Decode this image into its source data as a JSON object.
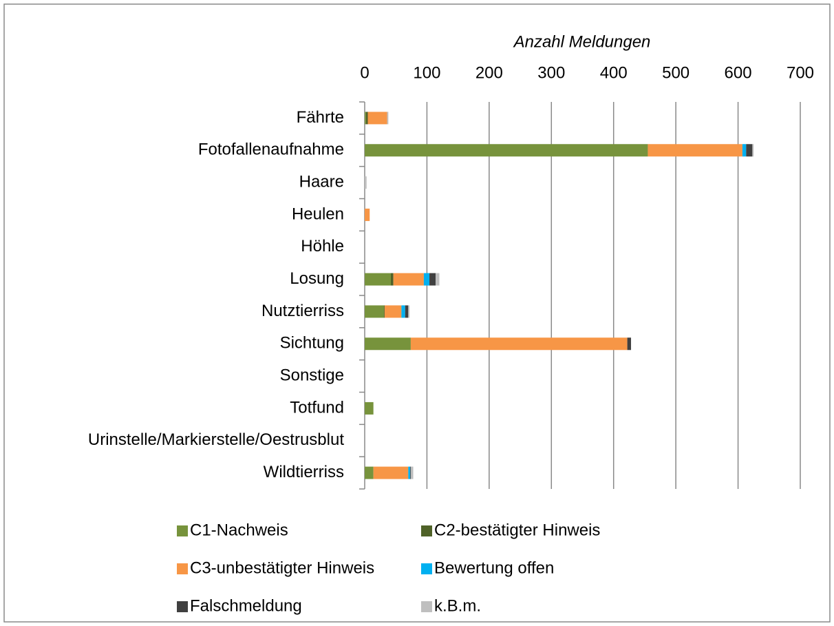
{
  "chart_data": {
    "type": "bar",
    "orientation": "horizontal",
    "stacked": true,
    "x_label": "Anzahl Meldungen",
    "categories": [
      "Fährte",
      "Fotofallenaufnahme",
      "Haare",
      "Heulen",
      "Höhle",
      "Losung",
      "Nutztierriss",
      "Sichtung",
      "Sonstige",
      "Totfund",
      "Urinstelle/Markierstelle/Oestrusblut",
      "Wildtierriss"
    ],
    "series": [
      {
        "name": "C1-Nachweis",
        "color": "#77933c",
        "values": [
          2,
          455,
          0,
          0,
          0,
          42,
          31,
          74,
          0,
          14,
          0,
          14
        ]
      },
      {
        "name": "C2-bestätigter Hinweis",
        "color": "#4f6228",
        "values": [
          3,
          0,
          0,
          0,
          0,
          4,
          1,
          0,
          0,
          0,
          0,
          0
        ]
      },
      {
        "name": "C3-unbestätigter Hinweis",
        "color": "#f79646",
        "values": [
          31,
          152,
          0,
          8,
          0,
          49,
          27,
          348,
          0,
          0,
          0,
          56
        ]
      },
      {
        "name": "Bewertung offen",
        "color": "#00b0f0",
        "values": [
          0,
          6,
          0,
          0,
          0,
          9,
          6,
          0,
          0,
          0,
          0,
          3
        ]
      },
      {
        "name": "Falschmeldung",
        "color": "#404040",
        "values": [
          0,
          10,
          0,
          0,
          0,
          10,
          5,
          6,
          0,
          0,
          0,
          1
        ]
      },
      {
        "name": "k.B.m.",
        "color": "#bfbfbf",
        "values": [
          2,
          2,
          3,
          0,
          0,
          6,
          2,
          0,
          0,
          0,
          0,
          4
        ]
      }
    ],
    "xlim": [
      0,
      700
    ],
    "xticks": [
      0,
      100,
      200,
      300,
      400,
      500,
      600,
      700
    ],
    "grid": true,
    "legend": "bottom"
  }
}
